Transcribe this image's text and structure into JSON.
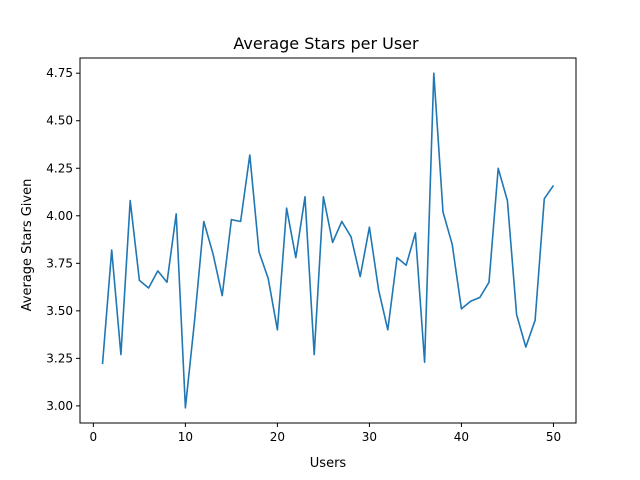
{
  "chart_data": {
    "type": "line",
    "title": "Average Stars per User",
    "xlabel": "Users",
    "ylabel": "Average Stars Given",
    "xlim": [
      -1.45,
      52.45
    ],
    "ylim": [
      2.91,
      4.83
    ],
    "xticks": [
      0,
      10,
      20,
      30,
      40,
      50
    ],
    "yticks": [
      3.0,
      3.25,
      3.5,
      3.75,
      4.0,
      4.25,
      4.5,
      4.75
    ],
    "grid": false,
    "legend": "none",
    "line_color": "#1f77b4",
    "series": [
      {
        "x": [
          1,
          2,
          3,
          4,
          5,
          6,
          7,
          8,
          9,
          10,
          11,
          12,
          13,
          14,
          15,
          16,
          17,
          18,
          19,
          20,
          21,
          22,
          23,
          24,
          25,
          26,
          27,
          28,
          29,
          30,
          31,
          32,
          33,
          34,
          35,
          36,
          37,
          38,
          39,
          40,
          41,
          42,
          43,
          44,
          45,
          46,
          47,
          48,
          49,
          50
        ],
        "values": [
          3.22,
          3.82,
          3.27,
          4.08,
          3.66,
          3.62,
          3.71,
          3.65,
          4.01,
          2.99,
          3.45,
          3.97,
          3.8,
          3.58,
          3.98,
          3.97,
          4.32,
          3.81,
          3.67,
          3.4,
          4.04,
          3.78,
          4.1,
          3.27,
          4.1,
          3.86,
          3.97,
          3.89,
          3.68,
          3.94,
          3.61,
          3.4,
          3.78,
          3.74,
          3.91,
          3.23,
          4.75,
          4.02,
          3.85,
          3.51,
          3.55,
          3.57,
          3.65,
          4.25,
          4.08,
          3.48,
          3.31,
          3.45,
          4.09,
          4.16
        ]
      }
    ]
  }
}
